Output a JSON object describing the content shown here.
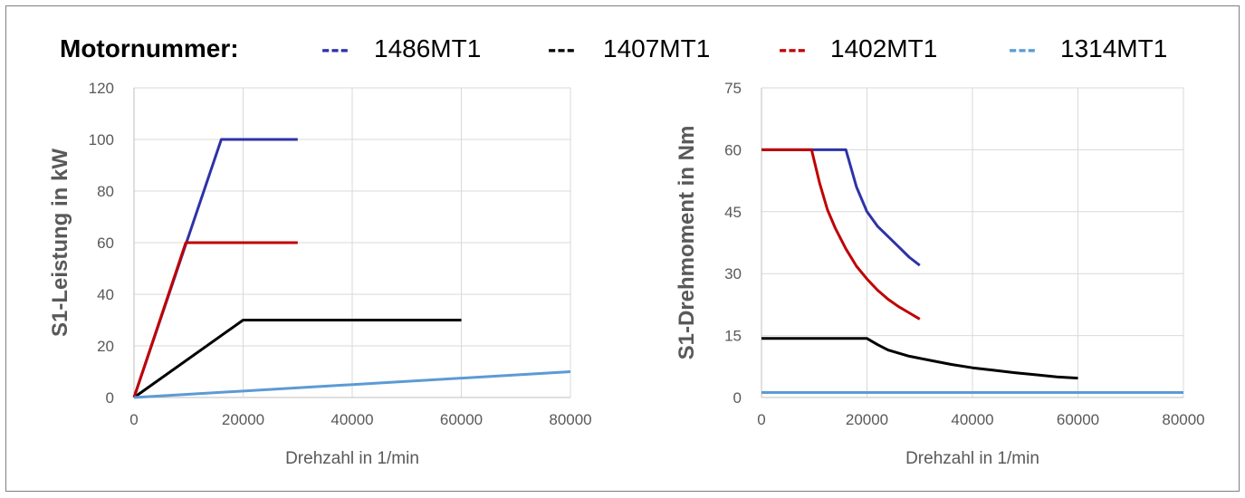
{
  "legend": {
    "title": "Motornummer:",
    "items": [
      {
        "dash": "---",
        "label": "1486MT1",
        "color": "#2e32a8"
      },
      {
        "dash": "---",
        "label": "1407MT1",
        "color": "#000000"
      },
      {
        "dash": "---",
        "label": "1402MT1",
        "color": "#c00000"
      },
      {
        "dash": "---",
        "label": "1314MT1",
        "color": "#5b9bd5"
      }
    ]
  },
  "chart_data": [
    {
      "type": "line",
      "xlabel": "Drehzahl in 1/min",
      "ylabel": "S1-Leistung in kW",
      "xlim": [
        0,
        80000
      ],
      "ylim": [
        0,
        120
      ],
      "xticks": [
        0,
        20000,
        40000,
        60000,
        80000
      ],
      "yticks": [
        0,
        20,
        40,
        60,
        80,
        100,
        120
      ],
      "grid": true,
      "series": [
        {
          "name": "1486MT1",
          "color": "#2e32a8",
          "points": [
            [
              0,
              0
            ],
            [
              16000,
              100
            ],
            [
              30000,
              100
            ]
          ]
        },
        {
          "name": "1407MT1",
          "color": "#000000",
          "points": [
            [
              0,
              0
            ],
            [
              20000,
              30
            ],
            [
              60000,
              30
            ]
          ]
        },
        {
          "name": "1402MT1",
          "color": "#c00000",
          "points": [
            [
              0,
              0
            ],
            [
              9500,
              60
            ],
            [
              30000,
              60
            ]
          ]
        },
        {
          "name": "1314MT1",
          "color": "#5b9bd5",
          "points": [
            [
              0,
              0
            ],
            [
              80000,
              10
            ]
          ]
        }
      ]
    },
    {
      "type": "line",
      "xlabel": "Drehzahl in 1/min",
      "ylabel": "S1-Drehmoment in Nm",
      "xlim": [
        0,
        80000
      ],
      "ylim": [
        0,
        75
      ],
      "xticks": [
        0,
        20000,
        40000,
        60000,
        80000
      ],
      "yticks": [
        0,
        15,
        30,
        45,
        60,
        75
      ],
      "grid": true,
      "series": [
        {
          "name": "1486MT1",
          "color": "#2e32a8",
          "points": [
            [
              0,
              60
            ],
            [
              16000,
              60
            ],
            [
              18000,
              51
            ],
            [
              20000,
              45
            ],
            [
              22000,
              41.5
            ],
            [
              24000,
              39
            ],
            [
              26000,
              36.5
            ],
            [
              28000,
              34
            ],
            [
              30000,
              32
            ]
          ]
        },
        {
          "name": "1407MT1",
          "color": "#000000",
          "points": [
            [
              0,
              14.3
            ],
            [
              20000,
              14.3
            ],
            [
              22000,
              12.8
            ],
            [
              24000,
              11.5
            ],
            [
              28000,
              10
            ],
            [
              32000,
              9
            ],
            [
              36000,
              8
            ],
            [
              40000,
              7.2
            ],
            [
              44000,
              6.6
            ],
            [
              48000,
              6
            ],
            [
              52000,
              5.5
            ],
            [
              56000,
              5
            ],
            [
              60000,
              4.7
            ]
          ]
        },
        {
          "name": "1402MT1",
          "color": "#c00000",
          "points": [
            [
              0,
              60
            ],
            [
              9500,
              60
            ],
            [
              11000,
              52
            ],
            [
              12500,
              45.5
            ],
            [
              14000,
              41
            ],
            [
              16000,
              36
            ],
            [
              18000,
              31.8
            ],
            [
              20000,
              28.7
            ],
            [
              22000,
              26
            ],
            [
              24000,
              23.8
            ],
            [
              26000,
              22
            ],
            [
              28000,
              20.5
            ],
            [
              30000,
              19
            ]
          ]
        },
        {
          "name": "1314MT1",
          "color": "#5b9bd5",
          "points": [
            [
              0,
              1.2
            ],
            [
              80000,
              1.2
            ]
          ]
        }
      ]
    }
  ]
}
